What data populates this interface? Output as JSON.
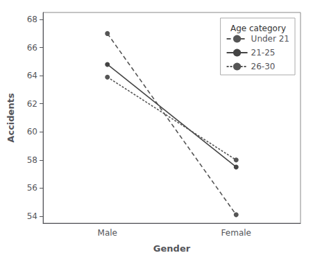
{
  "chart_data": {
    "type": "line",
    "xlabel": "Gender",
    "ylabel": "Accidents",
    "categories": [
      "Male",
      "Female"
    ],
    "series": [
      {
        "name": "Under 21",
        "color": "#555555",
        "line_style": "loosedash",
        "values": [
          67.0,
          54.1
        ]
      },
      {
        "name": "21-25",
        "color": "#444444",
        "line_style": "solid",
        "values": [
          64.8,
          57.5
        ]
      },
      {
        "name": "26-30",
        "color": "#555555",
        "line_style": "shortdash",
        "values": [
          63.9,
          58.0
        ]
      }
    ],
    "ylim": [
      53.5,
      68.5
    ],
    "yticks": [
      54,
      56,
      58,
      60,
      62,
      64,
      66,
      68
    ],
    "grid": false,
    "legend": "upper right",
    "legend_title": "Age category",
    "marker": "circle"
  }
}
